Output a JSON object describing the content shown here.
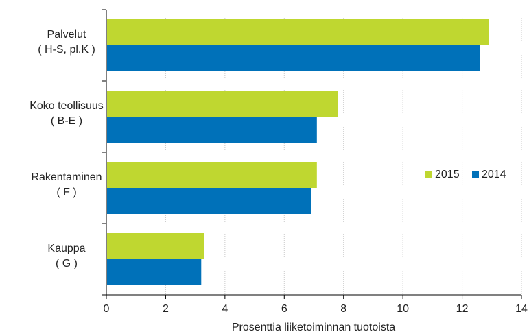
{
  "chart_data": {
    "type": "bar",
    "orientation": "horizontal",
    "categories": [
      [
        "Palvelut",
        "( H-S, pl.K )"
      ],
      [
        "Koko teollisuus",
        "( B-E )"
      ],
      [
        "Rakentaminen",
        "( F )"
      ],
      [
        "Kauppa",
        "( G )"
      ]
    ],
    "series": [
      {
        "name": "2015",
        "color": "#bfd730",
        "values": [
          12.9,
          7.8,
          7.1,
          3.3
        ]
      },
      {
        "name": "2014",
        "color": "#0071b9",
        "values": [
          12.6,
          7.1,
          6.9,
          3.2
        ]
      }
    ],
    "xlabel": "Prosenttia liiketoiminnan tuotoista",
    "xlim": [
      0,
      14
    ],
    "xticks": [
      0,
      2,
      4,
      6,
      8,
      10,
      12,
      14
    ],
    "grid": "vertical dotted",
    "legend_position": "right-middle"
  }
}
